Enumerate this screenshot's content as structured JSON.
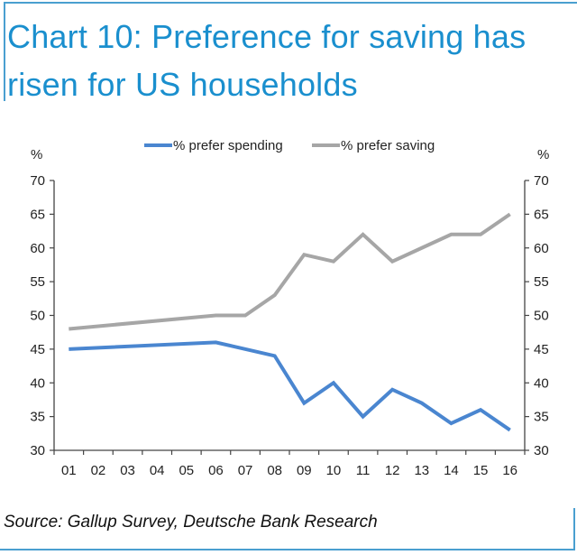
{
  "chart_data": {
    "type": "line",
    "title": "Chart 10: Preference for saving has risen for US households",
    "xlabel": "",
    "ylabel_left": "%",
    "ylabel_right": "%",
    "ylim": [
      30,
      70
    ],
    "y_ticks": [
      30,
      35,
      40,
      45,
      50,
      55,
      60,
      65,
      70
    ],
    "categories": [
      "01",
      "02",
      "03",
      "04",
      "05",
      "06",
      "07",
      "08",
      "09",
      "10",
      "11",
      "12",
      "13",
      "14",
      "15",
      "16"
    ],
    "series": [
      {
        "name": "% prefer spending",
        "color": "#4a86d0",
        "values": [
          45,
          null,
          null,
          null,
          null,
          46,
          null,
          44,
          37,
          40,
          35,
          39,
          37,
          34,
          36,
          33
        ]
      },
      {
        "name": "% prefer saving",
        "color": "#a6a6a6",
        "values": [
          48,
          null,
          null,
          null,
          null,
          50,
          50,
          53,
          59,
          58,
          62,
          58,
          60,
          62,
          62,
          65
        ]
      }
    ],
    "legend_position": "top",
    "grid": false,
    "source": "Source: Gallup Survey, Deutsche Bank Research"
  }
}
